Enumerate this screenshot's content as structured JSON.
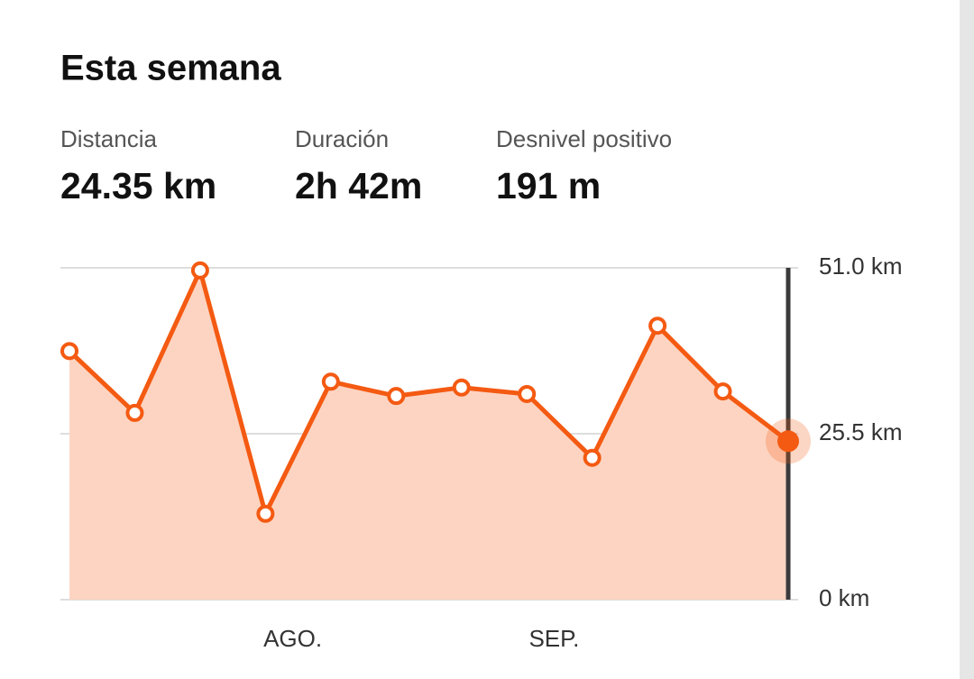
{
  "header": {
    "title": "Esta semana"
  },
  "stats": [
    {
      "label": "Distancia",
      "value": "24.35 km"
    },
    {
      "label": "Duración",
      "value": "2h 42m"
    },
    {
      "label": "Desnivel positivo",
      "value": "191 m"
    }
  ],
  "chart_data": {
    "type": "area",
    "categories": [
      null,
      null,
      null,
      null,
      "AGO.",
      null,
      null,
      null,
      "SEP.",
      null,
      null,
      null
    ],
    "values": [
      38.2,
      28.7,
      50.6,
      13.2,
      33.5,
      31.3,
      32.6,
      31.6,
      21.8,
      42.1,
      32.0,
      24.35
    ],
    "color": "#f45a12",
    "fill": "#fdd4c2",
    "ylim": [
      0,
      51
    ],
    "yticks": [
      {
        "value": 0,
        "label": "0 km"
      },
      {
        "value": 25.5,
        "label": "25.5 km"
      },
      {
        "value": 51,
        "label": "51.0 km"
      }
    ],
    "grid": true
  }
}
